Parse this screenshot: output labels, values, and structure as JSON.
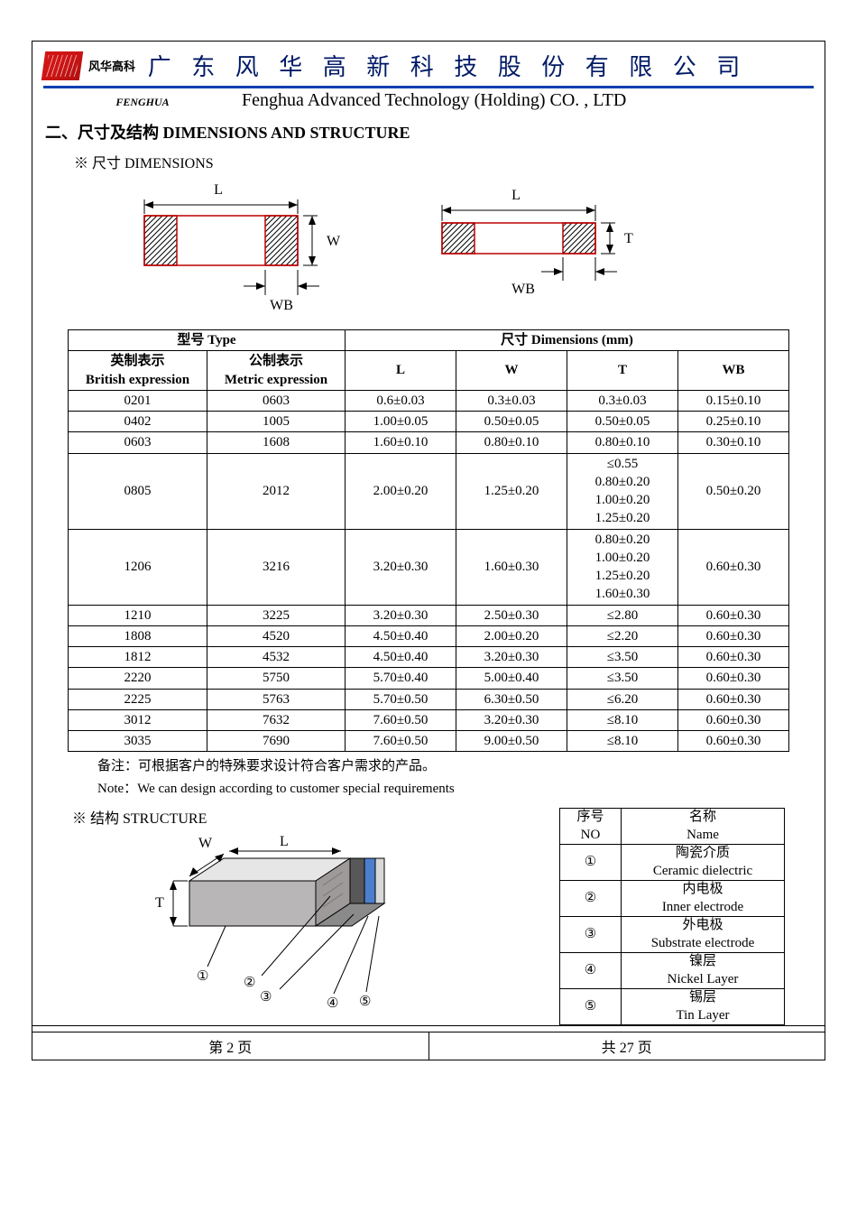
{
  "header": {
    "logo_text": "风华高科",
    "company_cn": "广 东 风 华 高 新 科 技 股 份 有 限 公 司",
    "fenghua": "FENGHUA",
    "company_en": "Fenghua Advanced Technology (Holding) CO. , LTD"
  },
  "section_title": "二、尺寸及结构    DIMENSIONS AND STRUCTURE",
  "dim_subtitle": "※ 尺寸 DIMENSIONS",
  "struct_subtitle": "※ 结构 STRUCTURE",
  "colors": {
    "logo_red": "#d01515",
    "blue": "#0b3fb0",
    "title_blue": "#001a66",
    "hatch": "#000000",
    "chip_gray": "#afaaaa",
    "chip_blue": "#4b7fce",
    "white": "#ffffff"
  },
  "diagrams": {
    "labels": {
      "L": "L",
      "W": "W",
      "T": "T",
      "WB": "WB"
    }
  },
  "dim_table": {
    "top_headers": {
      "type": "型号 Type",
      "dim": "尺寸      Dimensions      (mm)"
    },
    "sub_headers": {
      "british_cn": "英制表示",
      "british_en": "British expression",
      "metric_cn": "公制表示",
      "metric_en": "Metric expression",
      "L": "L",
      "W": "W",
      "T": "T",
      "WB": "WB"
    },
    "rows": [
      {
        "br": "0201",
        "me": "0603",
        "L": "0.6±0.03",
        "W": "0.3±0.03",
        "T": "0.3±0.03",
        "WB": "0.15±0.10"
      },
      {
        "br": "0402",
        "me": "1005",
        "L": "1.00±0.05",
        "W": "0.50±0.05",
        "T": "0.50±0.05",
        "WB": "0.25±0.10"
      },
      {
        "br": "0603",
        "me": "1608",
        "L": "1.60±0.10",
        "W": "0.80±0.10",
        "T": "0.80±0.10",
        "WB": "0.30±0.10"
      },
      {
        "br": "0805",
        "me": "2012",
        "L": "2.00±0.20",
        "W": "1.25±0.20",
        "T": "≤0.55\n0.80±0.20\n1.00±0.20\n1.25±0.20",
        "WB": "0.50±0.20"
      },
      {
        "br": "1206",
        "me": "3216",
        "L": "3.20±0.30",
        "W": "1.60±0.30",
        "T": "0.80±0.20\n1.00±0.20\n1.25±0.20\n1.60±0.30",
        "WB": "0.60±0.30"
      },
      {
        "br": "1210",
        "me": "3225",
        "L": "3.20±0.30",
        "W": "2.50±0.30",
        "T": "≤2.80",
        "WB": "0.60±0.30"
      },
      {
        "br": "1808",
        "me": "4520",
        "L": "4.50±0.40",
        "W": "2.00±0.20",
        "T": "≤2.20",
        "WB": "0.60±0.30"
      },
      {
        "br": "1812",
        "me": "4532",
        "L": "4.50±0.40",
        "W": "3.20±0.30",
        "T": "≤3.50",
        "WB": "0.60±0.30"
      },
      {
        "br": "2220",
        "me": "5750",
        "L": "5.70±0.40",
        "W": "5.00±0.40",
        "T": "≤3.50",
        "WB": "0.60±0.30"
      },
      {
        "br": "2225",
        "me": "5763",
        "L": "5.70±0.50",
        "W": "6.30±0.50",
        "T": "≤6.20",
        "WB": "0.60±0.30"
      },
      {
        "br": "3012",
        "me": "7632",
        "L": "7.60±0.50",
        "W": "3.20±0.30",
        "T": "≤8.10",
        "WB": "0.60±0.30"
      },
      {
        "br": "3035",
        "me": "7690",
        "L": "7.60±0.50",
        "W": "9.00±0.50",
        "T": "≤8.10",
        "WB": "0.60±0.30"
      }
    ]
  },
  "notes": {
    "cn": "备注：可根据客户的特殊要求设计符合客户需求的产品。",
    "en": "Note：We can design according to customer special requirements"
  },
  "struct_diagram": {
    "W": "W",
    "L": "L",
    "T": "T"
  },
  "struct_table": {
    "headers": {
      "no_cn": "序号",
      "no_en": "NO",
      "name_cn": "名称",
      "name_en": "Name"
    },
    "rows": [
      {
        "no": "①",
        "cn": "陶瓷介质",
        "en": "Ceramic   dielectric"
      },
      {
        "no": "②",
        "cn": "内电极",
        "en": "Inner   electrode"
      },
      {
        "no": "③",
        "cn": "外电极",
        "en": "Substrate   electrode"
      },
      {
        "no": "④",
        "cn": "镍层",
        "en": "Nickel Layer"
      },
      {
        "no": "⑤",
        "cn": "锡层",
        "en": "Tin Layer"
      }
    ]
  },
  "footer": {
    "left": "第    2    页",
    "right": "共   27   页"
  }
}
